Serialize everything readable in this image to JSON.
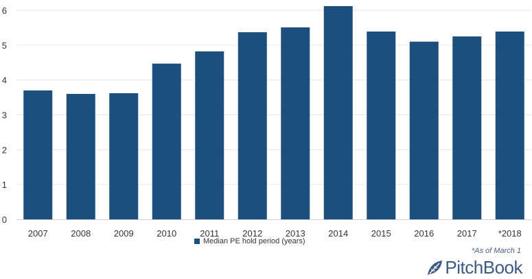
{
  "chart_data": {
    "type": "bar",
    "categories": [
      "2007",
      "2008",
      "2009",
      "2010",
      "2011",
      "2012",
      "2013",
      "2014",
      "2015",
      "2016",
      "2017",
      "*2018"
    ],
    "series": [
      {
        "name": "Median PE hold period (years)",
        "values": [
          3.7,
          3.6,
          3.62,
          4.47,
          4.82,
          5.37,
          5.51,
          6.12,
          5.39,
          5.1,
          5.25,
          5.39
        ],
        "color": "#1b4f7e"
      }
    ],
    "ylim": [
      0,
      6
    ],
    "yticks": [
      "0",
      "1",
      "2",
      "3",
      "4",
      "5",
      "6"
    ],
    "grid": true,
    "legend_position": "bottom",
    "title": "",
    "xlabel": "",
    "ylabel": ""
  },
  "footnote": "*As of March 1",
  "brand": {
    "name": "PitchBook",
    "color": "#3d5a86",
    "icon": "pitchbook-leaf-icon"
  }
}
